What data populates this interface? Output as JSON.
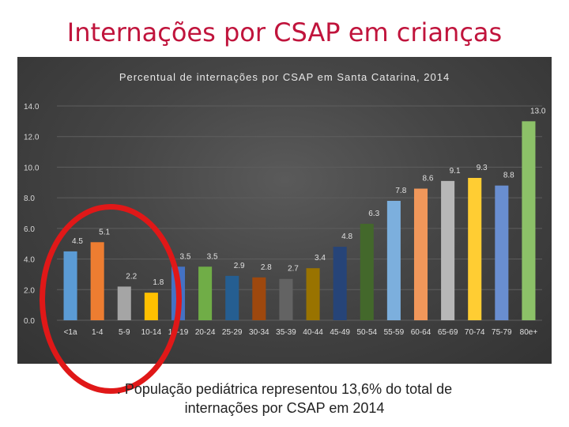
{
  "slide": {
    "title": "Internações por CSAP em crianças",
    "footnote_line1": ". População pediátrica representou 13,6% do total de",
    "footnote_line2": "internações por CSAP em 2014"
  },
  "chart_data": {
    "type": "bar",
    "title": "Percentual de internações por CSAP em Santa Catarina, 2014",
    "xlabel": "",
    "ylabel": "",
    "ylim": [
      0,
      14
    ],
    "yticks": [
      "0.0",
      "2.0",
      "4.0",
      "6.0",
      "8.0",
      "10.0",
      "12.0",
      "14.0"
    ],
    "grid": true,
    "legend": "none",
    "categories": [
      "<1a",
      "1-4",
      "5-9",
      "10-14",
      "15-19",
      "20-24",
      "25-29",
      "30-34",
      "35-39",
      "40-44",
      "45-49",
      "50-54",
      "55-59",
      "60-64",
      "65-69",
      "70-74",
      "75-79",
      "80e+"
    ],
    "values": [
      4.5,
      5.1,
      2.2,
      1.8,
      3.5,
      3.5,
      2.9,
      2.8,
      2.7,
      3.4,
      4.8,
      6.3,
      7.8,
      8.6,
      9.1,
      9.3,
      8.8,
      13.0
    ],
    "value_labels": [
      "4.5",
      "5.1",
      "2.2",
      "1.8",
      "3.5",
      "3.5",
      "2.9",
      "2.8",
      "2.7",
      "3.4",
      "4.8",
      "6.3",
      "7.8",
      "8.6",
      "9.1",
      "9.3",
      "8.8",
      "13.0"
    ],
    "colors": [
      "#5b9bd5",
      "#ed7d31",
      "#a5a5a5",
      "#ffc000",
      "#4472c4",
      "#70ad47",
      "#255e91",
      "#9e480e",
      "#636363",
      "#997300",
      "#264478",
      "#43682b",
      "#7cafdd",
      "#f1975a",
      "#b7b7b7",
      "#ffcd33",
      "#698ed0",
      "#8cc168"
    ]
  },
  "annotation": {
    "ring_color": "#e01818"
  }
}
